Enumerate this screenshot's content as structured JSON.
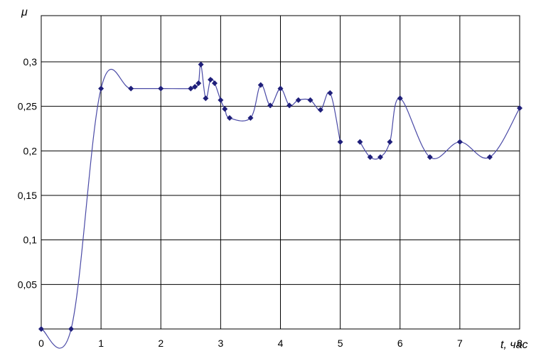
{
  "chart_data": {
    "type": "line",
    "title": "",
    "xlabel": "t, час",
    "ylabel": "μ",
    "xlim": [
      0,
      8
    ],
    "ylim": [
      0,
      0.3
    ],
    "grid": true,
    "legend": "none",
    "x_ticks": [
      "0",
      "1",
      "2",
      "3",
      "4",
      "5",
      "6",
      "7",
      "8"
    ],
    "y_ticks": [
      "0,05",
      "0,1",
      "0,15",
      "0,2",
      "0,25",
      "0,3"
    ],
    "line_color": "#4a4aa6",
    "marker_color": "#1f1f7a",
    "series": [
      {
        "segments": [
          [
            {
              "x": 0,
              "y": 0
            },
            {
              "x": 0.5,
              "y": 0
            },
            {
              "x": 1.0,
              "y": 0.27
            },
            {
              "x": 1.5,
              "y": 0.27
            },
            {
              "x": 2.0,
              "y": 0.27
            },
            {
              "x": 2.5,
              "y": 0.27
            },
            {
              "x": 2.57,
              "y": 0.272
            },
            {
              "x": 2.63,
              "y": 0.276
            },
            {
              "x": 2.67,
              "y": 0.297
            },
            {
              "x": 2.75,
              "y": 0.259
            },
            {
              "x": 2.83,
              "y": 0.28
            },
            {
              "x": 2.9,
              "y": 0.276
            },
            {
              "x": 3.0,
              "y": 0.257
            },
            {
              "x": 3.07,
              "y": 0.247
            },
            {
              "x": 3.15,
              "y": 0.237
            },
            {
              "x": 3.5,
              "y": 0.237
            },
            {
              "x": 3.67,
              "y": 0.274
            },
            {
              "x": 3.83,
              "y": 0.251
            },
            {
              "x": 4.0,
              "y": 0.27
            },
            {
              "x": 4.15,
              "y": 0.251
            },
            {
              "x": 4.3,
              "y": 0.257
            },
            {
              "x": 4.5,
              "y": 0.257
            },
            {
              "x": 4.67,
              "y": 0.246
            },
            {
              "x": 4.83,
              "y": 0.265
            },
            {
              "x": 5.0,
              "y": 0.21
            }
          ],
          [
            {
              "x": 5.33,
              "y": 0.21
            },
            {
              "x": 5.5,
              "y": 0.193
            },
            {
              "x": 5.67,
              "y": 0.193
            },
            {
              "x": 5.83,
              "y": 0.21
            },
            {
              "x": 6.0,
              "y": 0.259
            },
            {
              "x": 6.5,
              "y": 0.193
            },
            {
              "x": 7.0,
              "y": 0.21
            },
            {
              "x": 7.5,
              "y": 0.193
            },
            {
              "x": 8.0,
              "y": 0.248
            }
          ]
        ]
      }
    ]
  }
}
